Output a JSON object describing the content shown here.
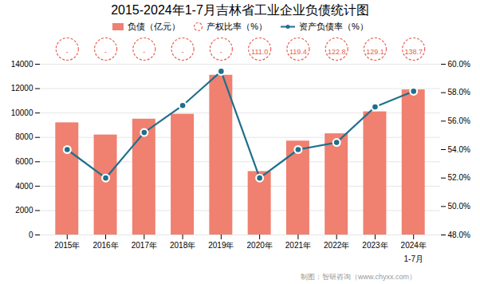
{
  "chart_data": {
    "type": "bar",
    "title": "2015-2024年1-7月吉林省工业企业负债统计图",
    "caption": "制图：智研咨询（www.chyxx.com）",
    "categories": [
      "2015年",
      "2016年",
      "2017年",
      "2018年",
      "2019年",
      "2020年",
      "2021年",
      "2022年",
      "2023年",
      "2024年"
    ],
    "series": [
      {
        "name": "负债（亿元）",
        "type": "bar",
        "color": "#F08070",
        "values": [
          9200,
          8200,
          9500,
          9900,
          13100,
          5200,
          7700,
          8300,
          10100,
          11900
        ]
      },
      {
        "name": "产权比率（%）",
        "type": "text",
        "color": "#E86050",
        "marker": "circle",
        "line_style": "dashed",
        "values": [
          null,
          null,
          null,
          null,
          null,
          111.0,
          119.4,
          122.8,
          129.1,
          138.7
        ],
        "value_labels": [
          "-",
          "-",
          "-",
          "-",
          "-",
          "111.0",
          "119.4",
          "122.8",
          "129.1",
          "138.7"
        ]
      },
      {
        "name": "资产负债率（%）",
        "type": "line",
        "axis": "y2",
        "color": "#1F6F8B",
        "marker": "circle",
        "values": [
          54.0,
          52.0,
          55.2,
          57.1,
          59.5,
          52.0,
          54.0,
          54.5,
          57.0,
          58.1
        ]
      }
    ],
    "ylim": [
      0,
      14000
    ],
    "yticks": [
      0,
      2000,
      4000,
      6000,
      8000,
      10000,
      12000,
      14000
    ],
    "y2lim": [
      48.0,
      60.0
    ],
    "y2ticks": [
      {
        "value": 48.0,
        "label": "48.0%"
      },
      {
        "value": 50.0,
        "label": "50.0%"
      },
      {
        "value": 52.0,
        "label": "52.0%"
      },
      {
        "value": 54.0,
        "label": "54.0%"
      },
      {
        "value": 56.0,
        "label": "56.0%"
      },
      {
        "value": 58.0,
        "label": "58.0%"
      },
      {
        "value": 60.0,
        "label": "60.0%"
      }
    ],
    "annotations": [
      {
        "text": "1-7月",
        "x": "2024年"
      }
    ],
    "grid": true,
    "legend": "top"
  }
}
